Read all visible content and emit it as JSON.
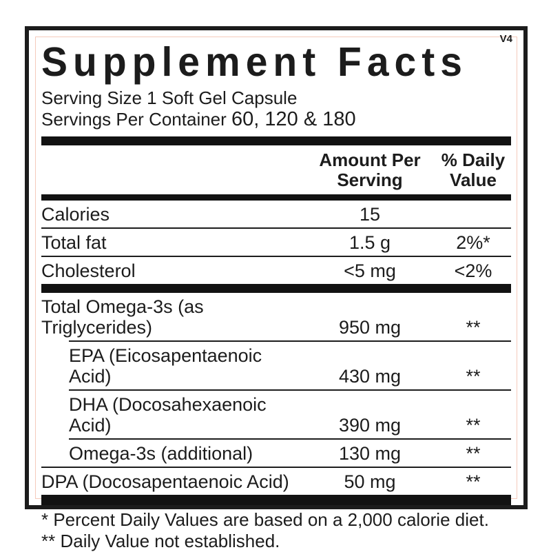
{
  "version_tag": "V4",
  "title": "Supplement Facts",
  "serving": {
    "size_line": "Serving Size 1 Soft Gel Capsule",
    "per_container_label": "Servings Per Container ",
    "per_container_value": "60, 120 & 180"
  },
  "columns": {
    "amount_line1": "Amount Per",
    "amount_line2": "Serving",
    "dv_line1": "% Daily",
    "dv_line2": "Value"
  },
  "rows": [
    {
      "name": "Calories",
      "amount": "15",
      "dv": ""
    },
    {
      "name": "Total fat",
      "amount": "1.5 g",
      "dv": "2%*"
    },
    {
      "name": "Cholesterol",
      "amount": "<5 mg",
      "dv": "<2%"
    },
    {
      "name": "Total Omega-3s (as Triglycerides)",
      "amount": "950 mg",
      "dv": "**"
    },
    {
      "name": "EPA (Eicosapentaenoic Acid)",
      "amount": "430 mg",
      "dv": "**"
    },
    {
      "name": "DHA (Docosahexaenoic Acid)",
      "amount": "390 mg",
      "dv": "**"
    },
    {
      "name": "Omega-3s (additional)",
      "amount": "130 mg",
      "dv": "**"
    },
    {
      "name": "DPA (Docosapentaenoic Acid)",
      "amount": "50 mg",
      "dv": "**"
    }
  ],
  "footnotes": [
    "* Percent Daily Values are based on a 2,000 calorie diet.",
    "** Daily Value not established."
  ],
  "colors": {
    "text": "#1c1c1c",
    "section_bar": "#121212",
    "inner_border": "#f5cabb"
  }
}
